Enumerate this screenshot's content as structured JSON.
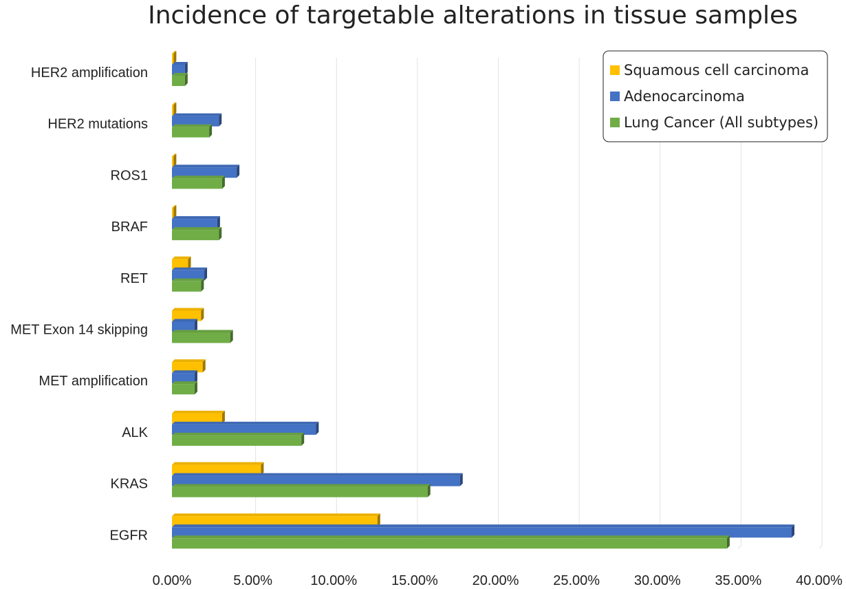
{
  "chart_data": {
    "type": "bar",
    "orientation": "horizontal",
    "title": "Incidence of targetable alterations in tissue samples",
    "xlabel": "",
    "ylabel": "",
    "xlim": [
      0,
      0.4
    ],
    "x_ticks": [
      "0.00%",
      "5.00%",
      "10.00%",
      "15.00%",
      "20.00%",
      "25.00%",
      "30.00%",
      "35.00%",
      "40.00%"
    ],
    "grid": "vertical",
    "legend_position": "top-right",
    "categories": [
      "HER2 amplification",
      "HER2 mutations",
      "ROS1",
      "BRAF",
      "RET",
      "MET Exon 14 skipping",
      "MET amplification",
      "ALK",
      "KRAS",
      "EGFR"
    ],
    "series": [
      {
        "name": "Squamous cell carcinoma",
        "color": "#FFC000",
        "values": [
          0.001,
          0.001,
          0.001,
          0.001,
          0.01,
          0.018,
          0.019,
          0.031,
          0.055,
          0.127
        ]
      },
      {
        "name": "Adenocarcinoma",
        "color": "#4472C4",
        "values": [
          0.008,
          0.029,
          0.04,
          0.028,
          0.02,
          0.014,
          0.014,
          0.089,
          0.178,
          0.383
        ]
      },
      {
        "name": "Lung Cancer (All subtypes)",
        "color": "#70AD47",
        "values": [
          0.008,
          0.023,
          0.031,
          0.029,
          0.018,
          0.036,
          0.014,
          0.08,
          0.158,
          0.343
        ]
      }
    ]
  }
}
